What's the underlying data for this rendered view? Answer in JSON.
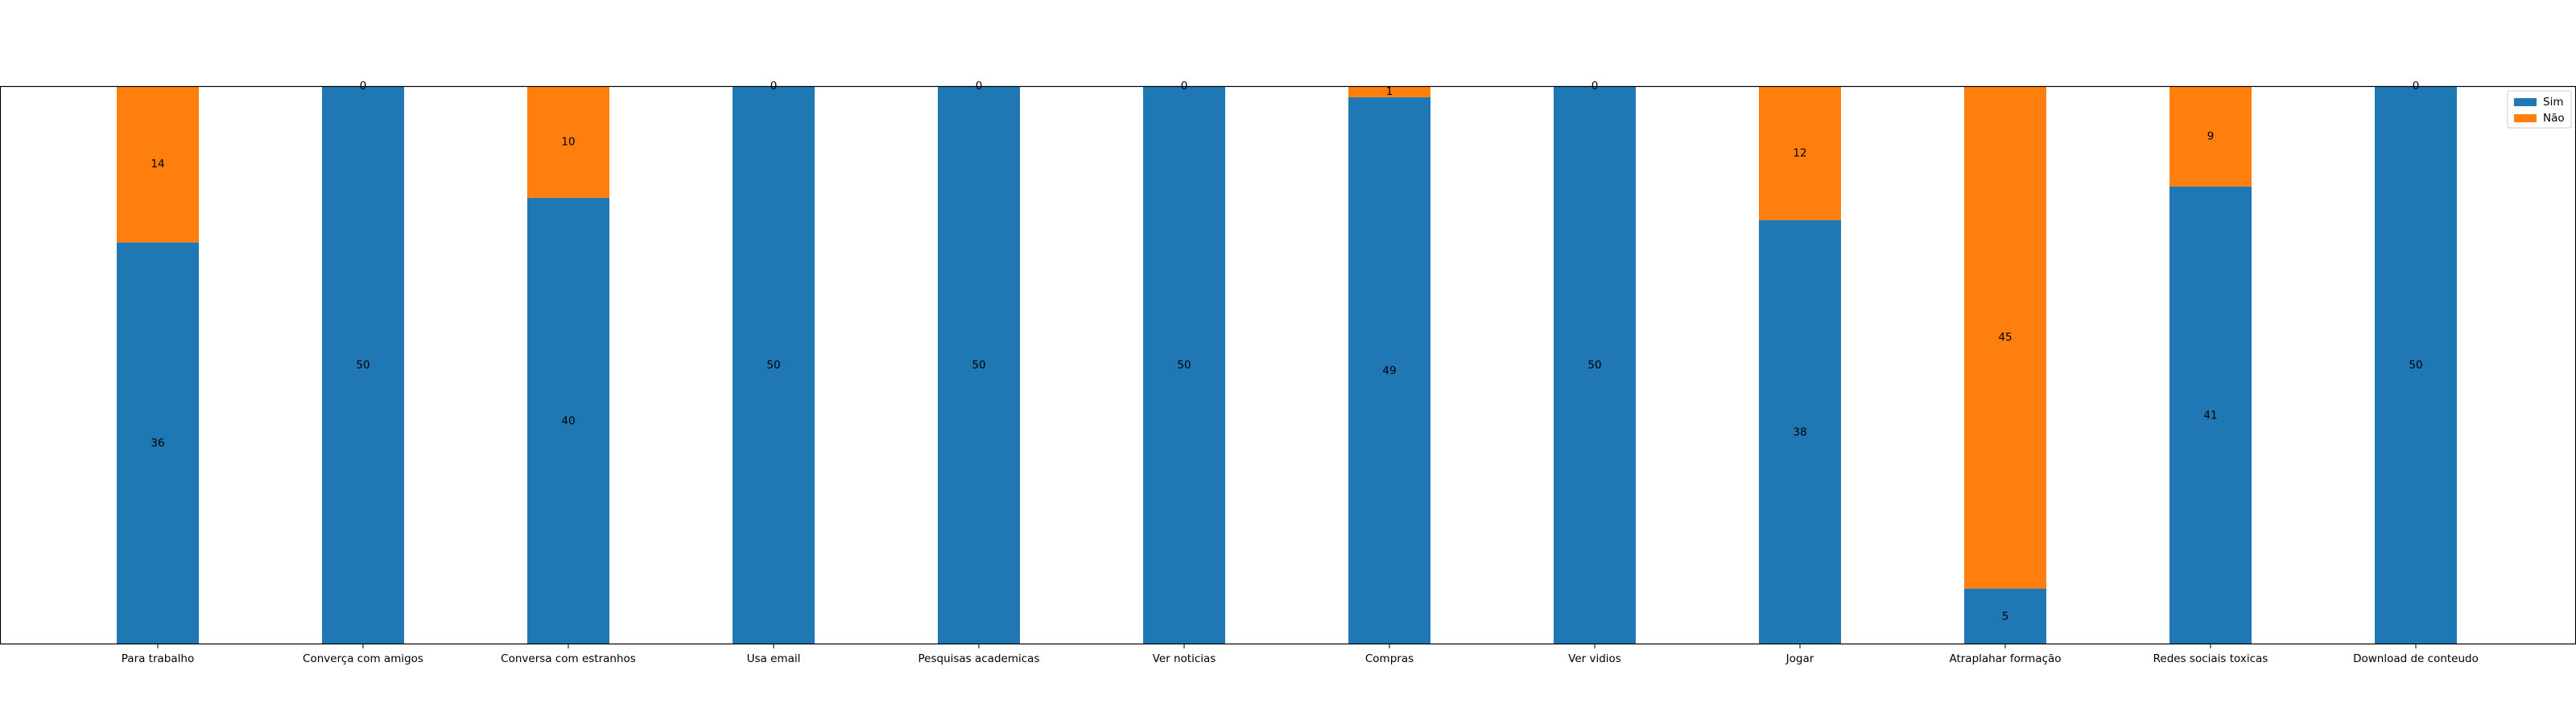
{
  "chart_data": {
    "type": "bar",
    "stacked": true,
    "categories": [
      "Para trabalho",
      "Converça com amigos",
      "Conversa com estranhos",
      "Usa email",
      "Pesquisas academicas",
      "Ver noticias",
      "Compras",
      "Ver vidios",
      "Jogar",
      "Atraplahar formação",
      "Redes sociais toxicas",
      "Download de conteudo"
    ],
    "series": [
      {
        "name": "Sim",
        "color": "#1f77b4",
        "values": [
          36,
          50,
          40,
          50,
          50,
          50,
          49,
          50,
          38,
          5,
          41,
          50
        ]
      },
      {
        "name": "Não",
        "color": "#ff7f0e",
        "values": [
          14,
          0,
          10,
          0,
          0,
          0,
          1,
          0,
          12,
          45,
          9,
          0
        ]
      }
    ],
    "ylim": [
      0,
      50
    ],
    "yticks_visible": false,
    "grid": false,
    "legend_position": "top-right"
  }
}
